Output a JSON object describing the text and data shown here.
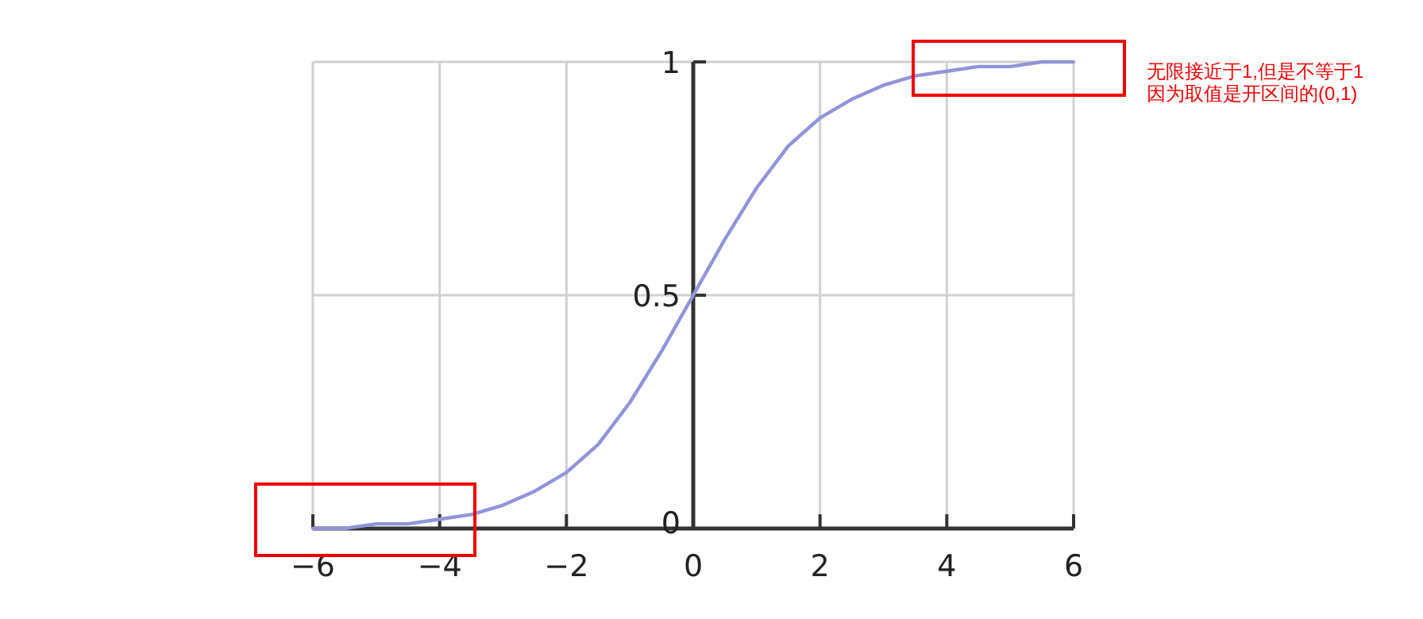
{
  "chart_data": {
    "type": "line",
    "x": [
      -6,
      -5.5,
      -5,
      -4.5,
      -4,
      -3.5,
      -3,
      -2.5,
      -2,
      -1.5,
      -1,
      -0.5,
      0,
      0.5,
      1,
      1.5,
      2,
      2.5,
      3,
      3.5,
      4,
      4.5,
      5,
      5.5,
      6
    ],
    "series": [
      {
        "color": "#8f95d8",
        "values": [
          0,
          0,
          0.01,
          0.01,
          0.02,
          0.03,
          0.05,
          0.08,
          0.12,
          0.18,
          0.27,
          0.38,
          0.5,
          0.62,
          0.73,
          0.82,
          0.88,
          0.92,
          0.95,
          0.97,
          0.98,
          0.99,
          0.99,
          1,
          1
        ]
      }
    ],
    "xlim": [
      -6,
      6
    ],
    "ylim": [
      0,
      1
    ],
    "xticks": [
      {
        "value": -6,
        "label": "−6"
      },
      {
        "value": -4,
        "label": "−4"
      },
      {
        "value": -2,
        "label": "−2"
      },
      0,
      2,
      4,
      6
    ],
    "yticks": [
      0,
      0.5,
      1
    ],
    "grid": true,
    "marker": "none",
    "line_style": "solid",
    "annotations": [
      "无限接近于1,但是不等于1",
      "因为取值是开区间的(0,1)"
    ]
  }
}
